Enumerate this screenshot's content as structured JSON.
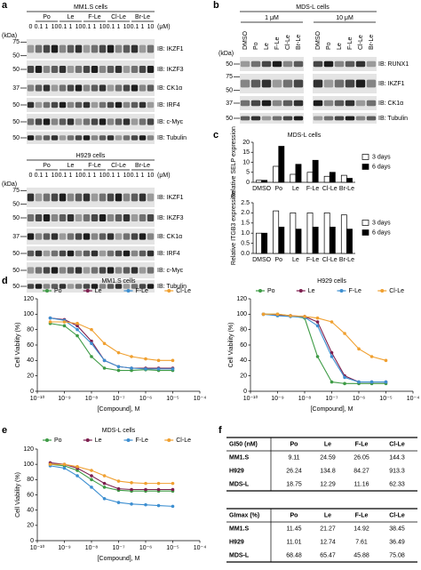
{
  "panel_labels": [
    "a",
    "b",
    "c",
    "d",
    "e",
    "f"
  ],
  "blot_a": {
    "unit": "(μM)",
    "kda": "(kDa)",
    "sections": [
      {
        "title": "MM1.S cells",
        "groups": [
          "Po",
          "Le",
          "F-Le",
          "Cl-Le",
          "Br-Le"
        ],
        "lanes": [
          0,
          0.1,
          1,
          10,
          0.1,
          1,
          10,
          0.1,
          1,
          10,
          0.1,
          1,
          10,
          0.1,
          1,
          10
        ],
        "rows": [
          {
            "label": "IB: IKZF1",
            "markers": [
              75,
              50
            ]
          },
          {
            "label": "IB: IKZF3",
            "markers": [
              50
            ]
          },
          {
            "label": "IB: CK1α",
            "markers": [
              37
            ]
          },
          {
            "label": "IB: IRF4",
            "markers": [
              50
            ]
          },
          {
            "label": "IB: c-Myc",
            "markers": [
              50
            ]
          },
          {
            "label": "IB: Tubulin",
            "markers": [
              50
            ]
          }
        ]
      },
      {
        "title": "H929 cells",
        "groups": [
          "Po",
          "Le",
          "F-Le",
          "Cl-Le",
          "Br-Le"
        ],
        "lanes": [
          0,
          0.1,
          1,
          10,
          0.1,
          1,
          10,
          0.1,
          1,
          10,
          0.1,
          1,
          10,
          0.1,
          1,
          10
        ],
        "rows": [
          {
            "label": "IB: IKZF1",
            "markers": [
              75,
              50
            ]
          },
          {
            "label": "IB: IKZF3",
            "markers": [
              50
            ]
          },
          {
            "label": "IB: CK1α",
            "markers": [
              37
            ]
          },
          {
            "label": "IB: IRF4",
            "markers": [
              50
            ]
          },
          {
            "label": "IB: c-Myc",
            "markers": [
              50
            ]
          },
          {
            "label": "IB: Tubulin",
            "markers": [
              50
            ]
          }
        ]
      }
    ]
  },
  "blot_b": {
    "title": "MDS-L cells",
    "doses": [
      "1 μM",
      "10 μM"
    ],
    "lanes": [
      "DMSO",
      "Po",
      "Le",
      "F-Le",
      "Cl-Le",
      "Br-Le"
    ],
    "kda": "(kDa)",
    "rows": [
      {
        "label": "IB: RUNX1",
        "markers": [
          50
        ]
      },
      {
        "label": "IB: IKZF1",
        "markers": [
          75,
          50
        ]
      },
      {
        "label": "IB: CK1α",
        "markers": [
          37
        ]
      },
      {
        "label": "IB: Tubulin",
        "markers": [
          50
        ]
      }
    ]
  },
  "chart_data": [
    {
      "type": "bar",
      "title": "MDS-L cells",
      "y_label": "Relative SELP expression",
      "categories": [
        "DMSO",
        "Po",
        "Le",
        "F-Le",
        "Cl-Le",
        "Br-Le"
      ],
      "series": [
        {
          "name": "3 days",
          "color": "#ffffff",
          "values": [
            1,
            8,
            4,
            5,
            3,
            3.5
          ]
        },
        {
          "name": "6 days",
          "color": "#000000",
          "values": [
            1,
            18,
            9,
            11,
            5,
            2
          ]
        }
      ],
      "ylim": [
        0,
        20
      ],
      "yticks": [
        0,
        5,
        10,
        15,
        20
      ]
    },
    {
      "type": "bar",
      "y_label": "Relative ITGB3 expression",
      "categories": [
        "DMSO",
        "Po",
        "Le",
        "F-Le",
        "Cl-Le",
        "Br-Le"
      ],
      "series": [
        {
          "name": "3 days",
          "color": "#ffffff",
          "values": [
            1,
            2.1,
            2,
            2,
            2,
            1.9
          ]
        },
        {
          "name": "6 days",
          "color": "#000000",
          "values": [
            1,
            1.3,
            1.2,
            1.3,
            1.3,
            1.2
          ]
        }
      ],
      "ylim": [
        0,
        2.5
      ],
      "yticks": [
        {
          "value": 0,
          "label": "0.0"
        },
        0.5,
        {
          "value": 1,
          "label": "1.0"
        },
        1.5,
        {
          "value": 2,
          "label": "2.0"
        },
        2.5
      ]
    },
    {
      "type": "line",
      "title": "MM1.S cells",
      "x_label": "[Compound], M",
      "y_label": "Cell Viability (%)",
      "log_x": true,
      "x": [
        3e-10,
        1e-09,
        3e-09,
        1e-08,
        3e-08,
        1e-07,
        3e-07,
        1e-06,
        3e-06,
        1e-05
      ],
      "xlim": [
        1e-10,
        0.0001
      ],
      "xticks": [
        {
          "value": 1e-10,
          "label": "10⁻¹⁰"
        },
        {
          "value": 1e-09,
          "label": "10⁻⁹"
        },
        {
          "value": 1e-08,
          "label": "10⁻⁸"
        },
        {
          "value": 1e-07,
          "label": "10⁻⁷"
        },
        {
          "value": 1e-06,
          "label": "10⁻⁶"
        },
        {
          "value": 1e-05,
          "label": "10⁻⁵"
        },
        {
          "value": 0.0001,
          "label": "10⁻⁴"
        }
      ],
      "ylim": [
        0,
        120
      ],
      "yticks": [
        0,
        20,
        40,
        60,
        80,
        100,
        120
      ],
      "series": [
        {
          "name": "Po",
          "color": "#3e9b45",
          "values": [
            88,
            85,
            72,
            45,
            30,
            27,
            27,
            28,
            27,
            27
          ]
        },
        {
          "name": "Le",
          "color": "#7d1f4f",
          "values": [
            95,
            93,
            85,
            65,
            40,
            32,
            30,
            30,
            30,
            30
          ]
        },
        {
          "name": "F-Le",
          "color": "#3d8fd1",
          "values": [
            95,
            92,
            80,
            62,
            40,
            32,
            30,
            29,
            29,
            29
          ]
        },
        {
          "name": "Cl-Le",
          "color": "#f0a030",
          "values": [
            90,
            90,
            88,
            80,
            62,
            50,
            45,
            42,
            40,
            40
          ]
        }
      ]
    },
    {
      "type": "line",
      "title": "H929 cells",
      "x_label": "[Compound], M",
      "y_label": "Cell Viability (%)",
      "log_x": true,
      "x": [
        3e-10,
        1e-09,
        3e-09,
        1e-08,
        3e-08,
        1e-07,
        3e-07,
        1e-06,
        3e-06,
        1e-05
      ],
      "xlim": [
        1e-10,
        0.0001
      ],
      "xticks": [
        {
          "value": 1e-10,
          "label": "10⁻¹⁰"
        },
        {
          "value": 1e-09,
          "label": "10⁻⁹"
        },
        {
          "value": 1e-08,
          "label": "10⁻⁸"
        },
        {
          "value": 1e-07,
          "label": "10⁻⁷"
        },
        {
          "value": 1e-06,
          "label": "10⁻⁶"
        },
        {
          "value": 1e-05,
          "label": "10⁻⁵"
        },
        {
          "value": 0.0001,
          "label": "10⁻⁴"
        }
      ],
      "ylim": [
        0,
        120
      ],
      "yticks": [
        0,
        20,
        40,
        60,
        80,
        100,
        120
      ],
      "series": [
        {
          "name": "Po",
          "color": "#3e9b45",
          "values": [
            100,
            100,
            98,
            95,
            45,
            12,
            10,
            10,
            10,
            10
          ]
        },
        {
          "name": "Le",
          "color": "#7d1f4f",
          "values": [
            100,
            99,
            98,
            97,
            90,
            50,
            20,
            12,
            12,
            12
          ]
        },
        {
          "name": "F-Le",
          "color": "#3d8fd1",
          "values": [
            100,
            98,
            97,
            96,
            85,
            45,
            18,
            12,
            12,
            12
          ]
        },
        {
          "name": "Cl-Le",
          "color": "#f0a030",
          "values": [
            100,
            100,
            98,
            97,
            95,
            90,
            75,
            55,
            45,
            40
          ]
        }
      ]
    },
    {
      "type": "line",
      "title": "MDS-L cells",
      "x_label": "[Compound], M",
      "y_label": "Cell Viability (%)",
      "log_x": true,
      "x": [
        3e-10,
        1e-09,
        3e-09,
        1e-08,
        3e-08,
        1e-07,
        3e-07,
        1e-06,
        3e-06,
        1e-05
      ],
      "xlim": [
        1e-10,
        0.0001
      ],
      "xticks": [
        {
          "value": 1e-10,
          "label": "10⁻¹⁰"
        },
        {
          "value": 1e-09,
          "label": "10⁻⁹"
        },
        {
          "value": 1e-08,
          "label": "10⁻⁸"
        },
        {
          "value": 1e-07,
          "label": "10⁻⁷"
        },
        {
          "value": 1e-06,
          "label": "10⁻⁶"
        },
        {
          "value": 1e-05,
          "label": "10⁻⁵"
        },
        {
          "value": 0.0001,
          "label": "10⁻⁴"
        }
      ],
      "ylim": [
        0,
        120
      ],
      "yticks": [
        0,
        20,
        40,
        60,
        80,
        100,
        120
      ],
      "series": [
        {
          "name": "Po",
          "color": "#3e9b45",
          "values": [
            100,
            98,
            92,
            80,
            70,
            66,
            65,
            65,
            65,
            65
          ]
        },
        {
          "name": "Le",
          "color": "#7d1f4f",
          "values": [
            102,
            100,
            95,
            85,
            75,
            68,
            67,
            67,
            67,
            67
          ]
        },
        {
          "name": "F-Le",
          "color": "#3d8fd1",
          "values": [
            98,
            95,
            85,
            70,
            55,
            50,
            48,
            47,
            46,
            45
          ]
        },
        {
          "name": "Cl-Le",
          "color": "#f0a030",
          "values": [
            100,
            100,
            97,
            92,
            85,
            78,
            76,
            75,
            75,
            75
          ]
        }
      ]
    }
  ],
  "table_f": {
    "tables": [
      {
        "header": [
          "GI50 (nM)",
          "Po",
          "Le",
          "F-Le",
          "Cl-Le"
        ],
        "rows": [
          [
            "MM1.S",
            9.11,
            24.59,
            26.05,
            144.3
          ],
          [
            "H929",
            26.24,
            134.8,
            84.27,
            913.3
          ],
          [
            "MDS-L",
            18.75,
            12.29,
            11.16,
            62.33
          ]
        ]
      },
      {
        "header": [
          "GImax (%)",
          "Po",
          "Le",
          "F-Le",
          "Cl-Le"
        ],
        "rows": [
          [
            "MM1.S",
            11.45,
            21.27,
            14.92,
            38.45
          ],
          [
            "H929",
            11.01,
            12.74,
            7.61,
            36.49
          ],
          [
            "MDS-L",
            68.48,
            65.47,
            45.88,
            75.08
          ]
        ]
      }
    ]
  }
}
